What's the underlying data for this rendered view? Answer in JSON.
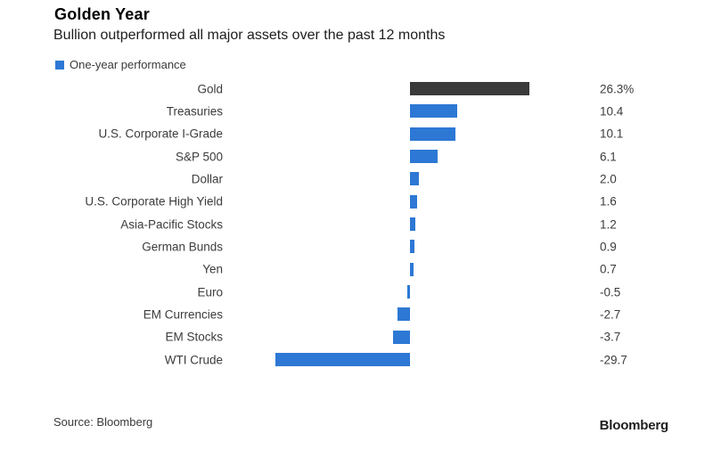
{
  "header": {
    "title": "Golden Year",
    "subtitle": "Bullion outperformed all major assets over the past 12 months"
  },
  "legend": {
    "label": "One-year performance",
    "swatch_color": "#2d78d4"
  },
  "chart_data": {
    "type": "bar",
    "orientation": "horizontal",
    "title": "Golden Year",
    "subtitle": "Bullion outperformed all major assets over the past 12 months",
    "legend_label": "One-year performance",
    "unit": "percent",
    "categories": [
      "Gold",
      "Treasuries",
      "U.S. Corporate I-Grade",
      "S&P 500",
      "Dollar",
      "U.S. Corporate High Yield",
      "Asia-Pacific Stocks",
      "German Bunds",
      "Yen",
      "Euro",
      "EM Currencies",
      "EM Stocks",
      "WTI Crude"
    ],
    "values": [
      26.3,
      10.4,
      10.1,
      6.1,
      2.0,
      1.6,
      1.2,
      0.9,
      0.7,
      -0.5,
      -2.7,
      -3.7,
      -29.7
    ],
    "value_labels": [
      "26.3%",
      "10.4",
      "10.1",
      "6.1",
      "2.0",
      "1.6",
      "1.2",
      "0.9",
      "0.7",
      "-0.5",
      "-2.7",
      "-3.7",
      "-29.7"
    ],
    "highlight_index": 0,
    "colors": {
      "highlight": "#3a3a3a",
      "default": "#2d78d4"
    },
    "xlim": [
      -41,
      40
    ],
    "grid": false,
    "legend_position": "top-left"
  },
  "footer": {
    "source": "Source: Bloomberg",
    "brand": "Bloomberg"
  }
}
